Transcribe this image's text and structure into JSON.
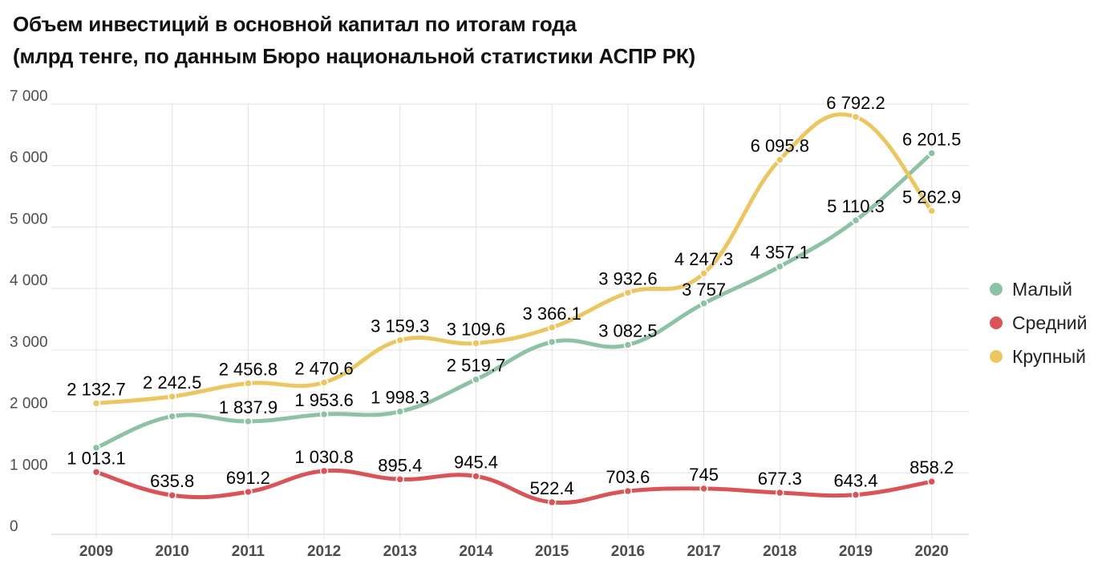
{
  "title_line1": "Объем инвестиций в основной капитал по итогам года",
  "title_line2": "(млрд тенге, по данным Бюро национальной статистики АСПР РК)",
  "colors": {
    "small": "#8ec2a4",
    "medium": "#d95357",
    "large": "#ecc660",
    "grid": "#e2e2e2",
    "tick": "#4d4d4d"
  },
  "chart_data": {
    "type": "line",
    "title": "Объем инвестиций в основной капитал по итогам года (млрд тенге, по данным Бюро национальной статистики АСПР РК)",
    "xlabel": "",
    "ylabel": "",
    "categories": [
      "2009",
      "2010",
      "2011",
      "2012",
      "2013",
      "2014",
      "2015",
      "2016",
      "2017",
      "2018",
      "2019",
      "2020"
    ],
    "ylim": [
      0,
      7000
    ],
    "yticks": [
      0,
      1000,
      2000,
      3000,
      4000,
      5000,
      6000,
      7000
    ],
    "ytick_labels": [
      "0",
      "1 000",
      "2 000",
      "3 000",
      "4 000",
      "5 000",
      "6 000",
      "7 000"
    ],
    "grid": true,
    "legend_position": "right",
    "series": [
      {
        "name": "Малый",
        "color": "#8ec2a4",
        "values": [
          1410,
          1920,
          1837.9,
          1953.6,
          1998.3,
          2519.7,
          3130,
          3082.5,
          3757,
          4357.1,
          5110.3,
          6201.5
        ],
        "labels": [
          "",
          "",
          "1 837.9",
          "1 953.6",
          "1 998.3",
          "2 519.7",
          "",
          "3 082.5",
          "3 757",
          "4 357.1",
          "5 110.3",
          "6 201.5"
        ]
      },
      {
        "name": "Средний",
        "color": "#d95357",
        "values": [
          1013.1,
          635.8,
          691.2,
          1030.8,
          895.4,
          945.4,
          522.4,
          703.6,
          745,
          677.3,
          643.4,
          858.2
        ],
        "labels": [
          "1 013.1",
          "635.8",
          "691.2",
          "1 030.8",
          "895.4",
          "945.4",
          "522.4",
          "703.6",
          "745",
          "677.3",
          "643.4",
          "858.2"
        ]
      },
      {
        "name": "Крупный",
        "color": "#ecc660",
        "values": [
          2132.7,
          2242.5,
          2456.8,
          2470.6,
          3159.3,
          3109.6,
          3366.1,
          3932.6,
          4247.3,
          6095.8,
          6792.2,
          5262.9
        ],
        "labels": [
          "2 132.7",
          "2 242.5",
          "2 456.8",
          "2 470.6",
          "3 159.3",
          "3 109.6",
          "3 366.1",
          "3 932.6",
          "4 247.3",
          "6 095.8",
          "6 792.2",
          "5 262.9"
        ]
      }
    ]
  }
}
